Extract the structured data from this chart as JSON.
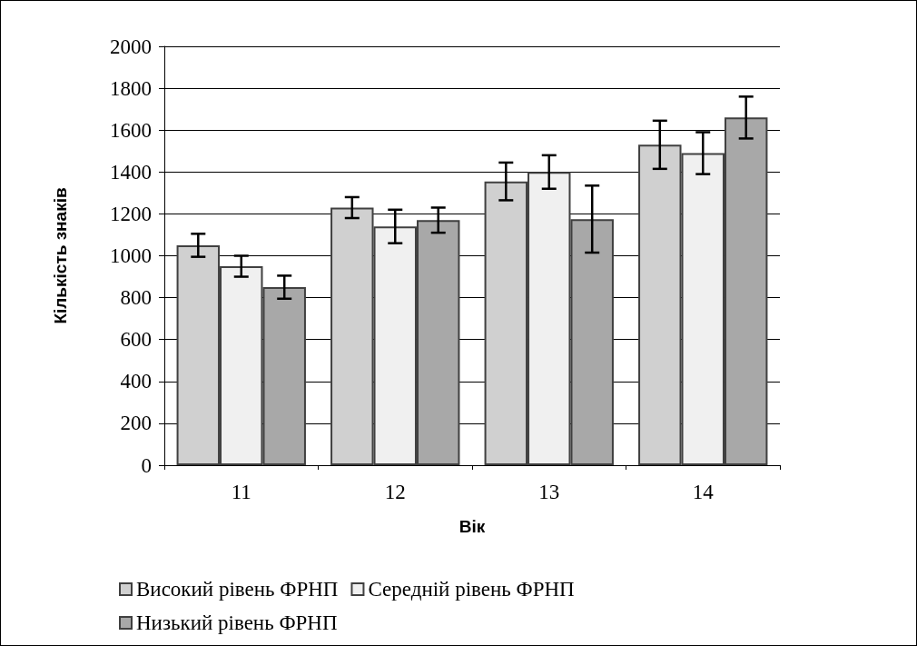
{
  "chart_data": {
    "type": "bar",
    "xlabel": "Вік",
    "ylabel": "Кількість знаків",
    "categories": [
      "11",
      "12",
      "13",
      "14"
    ],
    "series": [
      {
        "name": "Високий рівень ФРНП",
        "color": "#d0d0d0",
        "values": [
          1050,
          1230,
          1355,
          1530
        ],
        "errors": [
          55,
          50,
          90,
          115
        ]
      },
      {
        "name": "Середній рівень ФРНП",
        "color": "#f0f0f0",
        "values": [
          950,
          1140,
          1400,
          1490
        ],
        "errors": [
          50,
          80,
          80,
          100
        ]
      },
      {
        "name": "Низький рівень ФРНП",
        "color": "#a8a8a8",
        "values": [
          850,
          1170,
          1175,
          1660
        ],
        "errors": [
          55,
          60,
          160,
          100
        ]
      }
    ],
    "ylim": [
      0,
      2000
    ],
    "yticks": [
      0,
      200,
      400,
      600,
      800,
      1000,
      1200,
      1400,
      1600,
      1800,
      2000
    ],
    "grid": "y",
    "legend": "bottom"
  }
}
